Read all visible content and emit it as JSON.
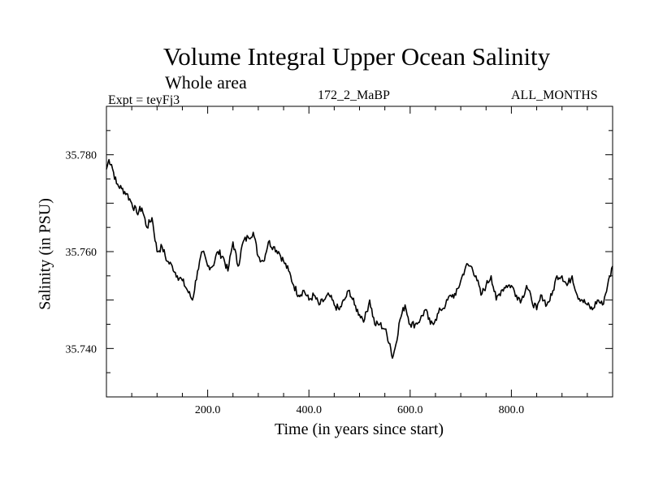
{
  "chart_data": {
    "type": "line",
    "title": "Volume Integral Upper Ocean Salinity",
    "subtitle": "Whole area",
    "expt_label": "Expt = teyFj3",
    "run_label": "172_2_MaBP",
    "months_label": "ALL_MONTHS",
    "xlabel": "Time (in years since start)",
    "ylabel": "Salinity (in PSU)",
    "xlim": [
      0,
      1000
    ],
    "ylim": [
      35.73,
      35.79
    ],
    "x_ticks": [
      200,
      400,
      600,
      800
    ],
    "x_tick_labels": [
      "200.0",
      "400.0",
      "600.0",
      "800.0"
    ],
    "y_ticks": [
      35.74,
      35.76,
      35.78
    ],
    "y_tick_labels": [
      "35.740",
      "35.760",
      "35.780"
    ],
    "line_color": "#000000",
    "series": [
      {
        "name": "Salinity",
        "x": [
          0,
          5,
          10,
          20,
          30,
          40,
          50,
          60,
          70,
          80,
          90,
          100,
          110,
          120,
          130,
          140,
          150,
          160,
          170,
          180,
          190,
          200,
          210,
          220,
          230,
          240,
          250,
          260,
          270,
          280,
          290,
          300,
          310,
          320,
          330,
          340,
          350,
          360,
          370,
          380,
          390,
          400,
          410,
          420,
          430,
          440,
          450,
          460,
          470,
          480,
          490,
          500,
          510,
          520,
          530,
          540,
          550,
          560,
          565,
          570,
          580,
          590,
          600,
          610,
          620,
          630,
          640,
          650,
          660,
          670,
          680,
          690,
          700,
          710,
          720,
          730,
          740,
          750,
          760,
          770,
          780,
          790,
          800,
          810,
          820,
          830,
          840,
          850,
          860,
          870,
          880,
          890,
          900,
          910,
          920,
          930,
          940,
          950,
          960,
          970,
          980,
          990,
          1000
        ],
        "values": [
          35.777,
          35.779,
          35.778,
          35.774,
          35.773,
          35.772,
          35.77,
          35.768,
          35.769,
          35.765,
          35.767,
          35.76,
          35.761,
          35.758,
          35.757,
          35.755,
          35.754,
          35.752,
          35.75,
          35.756,
          35.76,
          35.757,
          35.757,
          35.76,
          35.759,
          35.756,
          35.762,
          35.757,
          35.762,
          35.763,
          35.764,
          35.759,
          35.758,
          35.762,
          35.761,
          35.76,
          35.758,
          35.756,
          35.753,
          35.751,
          35.752,
          35.75,
          35.751,
          35.749,
          35.75,
          35.751,
          35.749,
          35.748,
          35.75,
          35.752,
          35.749,
          35.747,
          35.746,
          35.75,
          35.745,
          35.745,
          35.744,
          35.741,
          35.738,
          35.74,
          35.746,
          35.749,
          35.745,
          35.745,
          35.746,
          35.748,
          35.745,
          35.746,
          35.748,
          35.749,
          35.751,
          35.751,
          35.754,
          35.757,
          35.757,
          35.755,
          35.751,
          35.753,
          35.755,
          35.75,
          35.752,
          35.753,
          35.753,
          35.751,
          35.75,
          35.753,
          35.75,
          35.748,
          35.751,
          35.749,
          35.751,
          35.755,
          35.755,
          35.753,
          35.755,
          35.751,
          35.75,
          35.749,
          35.748,
          35.75,
          35.749,
          35.753,
          35.757
        ]
      }
    ]
  }
}
